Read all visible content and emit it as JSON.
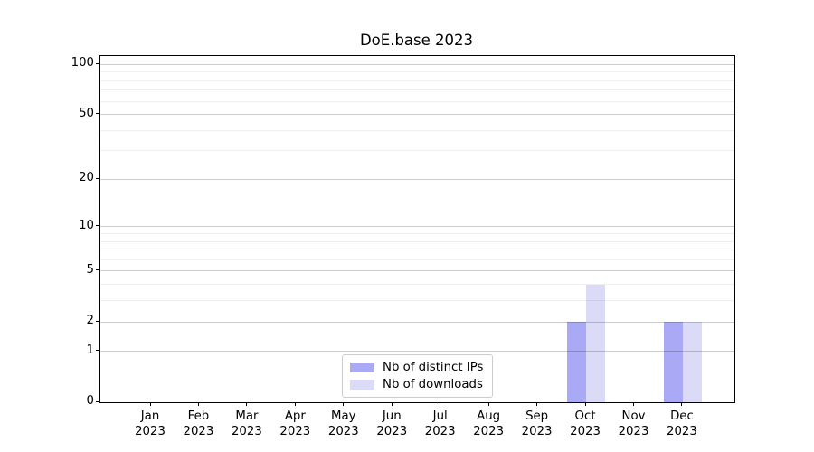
{
  "window": {
    "background_color": "#ffffff"
  },
  "chart_data": {
    "type": "bar",
    "title": "DoE.base 2023",
    "categories": [
      "Jan 2023",
      "Feb 2023",
      "Mar 2023",
      "Apr 2023",
      "May 2023",
      "Jun 2023",
      "Jul 2023",
      "Aug 2023",
      "Sep 2023",
      "Oct 2023",
      "Nov 2023",
      "Dec 2023"
    ],
    "series": [
      {
        "name": "Nb of distinct IPs",
        "color": "#a9a9f5",
        "values": [
          0,
          0,
          0,
          0,
          0,
          0,
          0,
          0,
          0,
          2,
          0,
          2
        ]
      },
      {
        "name": "Nb of downloads",
        "color": "#dbdbf8",
        "values": [
          0,
          0,
          0,
          0,
          0,
          0,
          0,
          0,
          0,
          4,
          0,
          2
        ]
      }
    ],
    "xlabel": "",
    "ylabel": "",
    "yscale": "log1p",
    "ylim": [
      0,
      112
    ],
    "yticks": [
      0,
      1,
      2,
      5,
      10,
      20,
      50,
      100
    ],
    "minor_yticks": [
      3,
      4,
      6,
      7,
      8,
      9,
      30,
      40,
      60,
      70,
      80,
      90
    ],
    "grid": "both",
    "legend_position": "lower center",
    "spine_color": "#000000",
    "major_grid_color": "#cccccc",
    "minor_grid_color": "#eeeeee"
  }
}
